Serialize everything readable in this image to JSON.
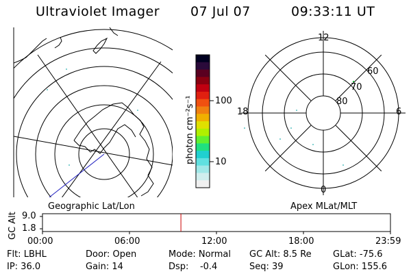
{
  "header": {
    "title": "Ultraviolet Imager",
    "date": "07 Jul 07",
    "time": "09:33:11 UT"
  },
  "colorbar": {
    "label": "photon cm⁻²s⁻¹",
    "ticks": [
      "100",
      "10"
    ],
    "colors": [
      "#000020",
      "#2a0a3a",
      "#5a0020",
      "#8a0010",
      "#c00010",
      "#e02010",
      "#f05010",
      "#f08010",
      "#f0b000",
      "#e0e000",
      "#b0f000",
      "#60f030",
      "#20e080",
      "#20d0d0",
      "#60e0e0",
      "#a0e8e8",
      "#d0eeee",
      "#f0f0f0"
    ]
  },
  "polar_plot": {
    "mlt_labels": [
      "12",
      "18",
      "6",
      "0"
    ],
    "lat_labels": [
      "60",
      "70",
      "80"
    ]
  },
  "panel_labels": {
    "left": "Geographic Lat/Lon",
    "right": "Apex MLat/MLT"
  },
  "altitude_plot": {
    "ylabel": "GC Alt",
    "yticks": [
      "9.0",
      "1.8"
    ],
    "xticks": [
      "00:00",
      "06:00",
      "12:00",
      "18:00",
      "23:59"
    ],
    "current_time_hours": 9.55,
    "marker_color": "#cc0000"
  },
  "info": {
    "row1": [
      "Flt: LBHL",
      "Door: Open",
      "Mode: Normal",
      "GC Alt: 8.5 Re",
      "GLat: -75.6"
    ],
    "row2": [
      "IP: 36.0",
      "Gain: 14",
      "Dsp:    -0.4",
      "Seq: 39",
      "GLon: 155.6"
    ]
  }
}
